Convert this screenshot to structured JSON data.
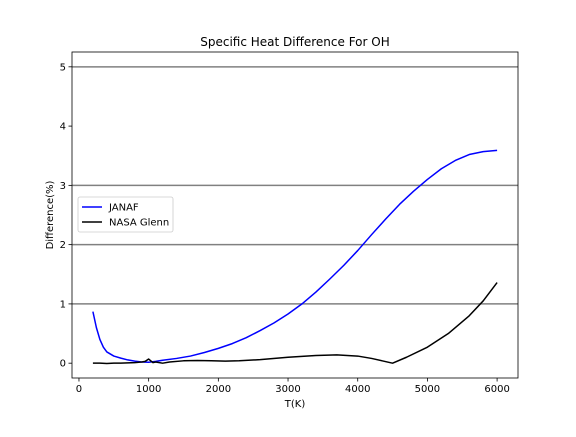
{
  "chart_data": {
    "type": "line",
    "title": "Specific Heat Difference For OH",
    "xlabel": "T(K)",
    "ylabel": "Difference(%)",
    "xlim": [
      -100,
      6300
    ],
    "ylim": [
      -0.25,
      5.25
    ],
    "xticks": [
      0,
      1000,
      2000,
      3000,
      4000,
      5000,
      6000
    ],
    "yticks": [
      0,
      1,
      2,
      3,
      4,
      5
    ],
    "reference_lines": [
      1,
      2,
      3,
      5
    ],
    "legend_position": "center-left",
    "series": [
      {
        "name": "JANAF",
        "color": "#0000ff",
        "points": [
          [
            200,
            0.87
          ],
          [
            250,
            0.6
          ],
          [
            300,
            0.4
          ],
          [
            350,
            0.27
          ],
          [
            400,
            0.19
          ],
          [
            500,
            0.12
          ],
          [
            600,
            0.085
          ],
          [
            700,
            0.055
          ],
          [
            800,
            0.035
          ],
          [
            900,
            0.02
          ],
          [
            1000,
            0.015
          ],
          [
            1100,
            0.03
          ],
          [
            1200,
            0.05
          ],
          [
            1400,
            0.08
          ],
          [
            1600,
            0.12
          ],
          [
            1800,
            0.18
          ],
          [
            2000,
            0.25
          ],
          [
            2200,
            0.33
          ],
          [
            2400,
            0.43
          ],
          [
            2600,
            0.55
          ],
          [
            2800,
            0.68
          ],
          [
            3000,
            0.83
          ],
          [
            3200,
            1.0
          ],
          [
            3400,
            1.2
          ],
          [
            3600,
            1.42
          ],
          [
            3800,
            1.65
          ],
          [
            4000,
            1.9
          ],
          [
            4200,
            2.17
          ],
          [
            4400,
            2.43
          ],
          [
            4600,
            2.68
          ],
          [
            4800,
            2.9
          ],
          [
            5000,
            3.1
          ],
          [
            5200,
            3.28
          ],
          [
            5400,
            3.42
          ],
          [
            5600,
            3.52
          ],
          [
            5800,
            3.57
          ],
          [
            6000,
            3.59
          ]
        ]
      },
      {
        "name": "NASA Glenn",
        "color": "#000000",
        "points": [
          [
            200,
            0.0
          ],
          [
            300,
            0.0
          ],
          [
            400,
            -0.005
          ],
          [
            500,
            0.0
          ],
          [
            600,
            0.0
          ],
          [
            700,
            0.005
          ],
          [
            800,
            0.01
          ],
          [
            900,
            0.02
          ],
          [
            950,
            0.03
          ],
          [
            1000,
            0.07
          ],
          [
            1030,
            0.04
          ],
          [
            1060,
            0.01
          ],
          [
            1100,
            0.02
          ],
          [
            1200,
            0.0
          ],
          [
            1300,
            0.02
          ],
          [
            1500,
            0.04
          ],
          [
            1700,
            0.045
          ],
          [
            1900,
            0.04
          ],
          [
            2100,
            0.035
          ],
          [
            2300,
            0.04
          ],
          [
            2600,
            0.06
          ],
          [
            3000,
            0.1
          ],
          [
            3400,
            0.13
          ],
          [
            3700,
            0.14
          ],
          [
            4000,
            0.12
          ],
          [
            4200,
            0.08
          ],
          [
            4350,
            0.04
          ],
          [
            4500,
            0.0
          ],
          [
            4700,
            0.1
          ],
          [
            5000,
            0.27
          ],
          [
            5300,
            0.5
          ],
          [
            5600,
            0.8
          ],
          [
            5800,
            1.05
          ],
          [
            6000,
            1.36
          ]
        ]
      }
    ]
  }
}
